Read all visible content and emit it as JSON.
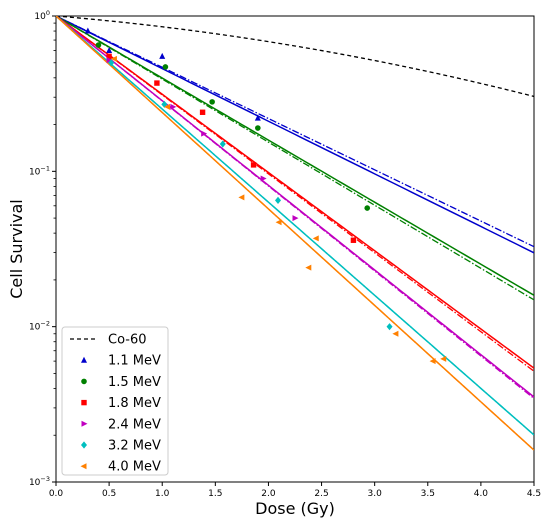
{
  "chart_data": {
    "type": "scatter",
    "xlabel": "Dose (Gy)",
    "ylabel": "Cell Survival",
    "xlim": [
      0,
      4.5
    ],
    "ylim": [
      0.001,
      1
    ],
    "yscale": "log",
    "x_ticks": [
      0.0,
      0.5,
      1.0,
      1.5,
      2.0,
      2.5,
      3.0,
      3.5,
      4.0,
      4.5
    ],
    "x_tick_labels": [
      "0.0",
      "0.5",
      "1.0",
      "1.5",
      "2.0",
      "2.5",
      "3.0",
      "3.5",
      "4.0",
      "4.5"
    ],
    "y_ticks": [
      {
        "value": 0.001,
        "base": "10",
        "exp": "−3"
      },
      {
        "value": 0.01,
        "base": "10",
        "exp": "−2"
      },
      {
        "value": 0.1,
        "base": "10",
        "exp": "−1"
      },
      {
        "value": 1,
        "base": "10",
        "exp": "0"
      }
    ],
    "grid": false,
    "legend_position": "bottom-left",
    "reference": {
      "name": "Co-60",
      "color": "#000000",
      "dash": "dashed",
      "model_alpha": 0.13,
      "model_beta": 0.03
    },
    "series": [
      {
        "name": "1.1 MeV",
        "color": "#0000cc",
        "marker": "triangle-up",
        "fit_solid_alpha": 0.78,
        "fit_dash_alpha": 0.76,
        "points": [
          [
            0.3,
            0.8
          ],
          [
            0.5,
            0.6
          ],
          [
            1.0,
            0.55
          ],
          [
            1.9,
            0.22
          ]
        ]
      },
      {
        "name": "1.5 MeV",
        "color": "#008000",
        "marker": "circle",
        "fit_solid_alpha": 0.92,
        "fit_dash_alpha": 0.935,
        "points": [
          [
            0.4,
            0.65
          ],
          [
            1.03,
            0.47
          ],
          [
            1.47,
            0.28
          ],
          [
            1.9,
            0.19
          ],
          [
            2.93,
            0.058
          ]
        ]
      },
      {
        "name": "1.8 MeV",
        "color": "#ff0000",
        "marker": "square",
        "fit_solid_alpha": 1.16,
        "fit_dash_alpha": 1.17,
        "points": [
          [
            0.5,
            0.55
          ],
          [
            0.95,
            0.37
          ],
          [
            1.38,
            0.24
          ],
          [
            1.86,
            0.11
          ],
          [
            2.8,
            0.036
          ]
        ]
      },
      {
        "name": "2.4 MeV",
        "color": "#c000c0",
        "marker": "triangle-right",
        "fit_solid_alpha": 1.255,
        "fit_dash_alpha": 1.26,
        "points": [
          [
            0.5,
            0.52
          ],
          [
            1.1,
            0.26
          ],
          [
            1.39,
            0.175
          ],
          [
            1.95,
            0.09
          ],
          [
            2.25,
            0.05
          ]
        ]
      },
      {
        "name": "3.2 MeV",
        "color": "#00bfbf",
        "marker": "diamond",
        "fit_solid_alpha": 1.38,
        "fit_dash_alpha": 1.38,
        "points": [
          [
            0.52,
            0.5
          ],
          [
            1.02,
            0.27
          ],
          [
            1.57,
            0.15
          ],
          [
            2.09,
            0.065
          ],
          [
            3.14,
            0.01
          ]
        ]
      },
      {
        "name": "4.0 MeV",
        "color": "#ff8000",
        "marker": "triangle-left",
        "fit_solid_alpha": 1.43,
        "fit_dash_alpha": 1.43,
        "points": [
          [
            0.55,
            0.53
          ],
          [
            1.05,
            0.26
          ],
          [
            1.75,
            0.068
          ],
          [
            2.1,
            0.047
          ],
          [
            2.38,
            0.024
          ],
          [
            2.45,
            0.037
          ],
          [
            3.2,
            0.009
          ],
          [
            3.55,
            0.006
          ],
          [
            3.65,
            0.0062
          ]
        ]
      }
    ]
  }
}
